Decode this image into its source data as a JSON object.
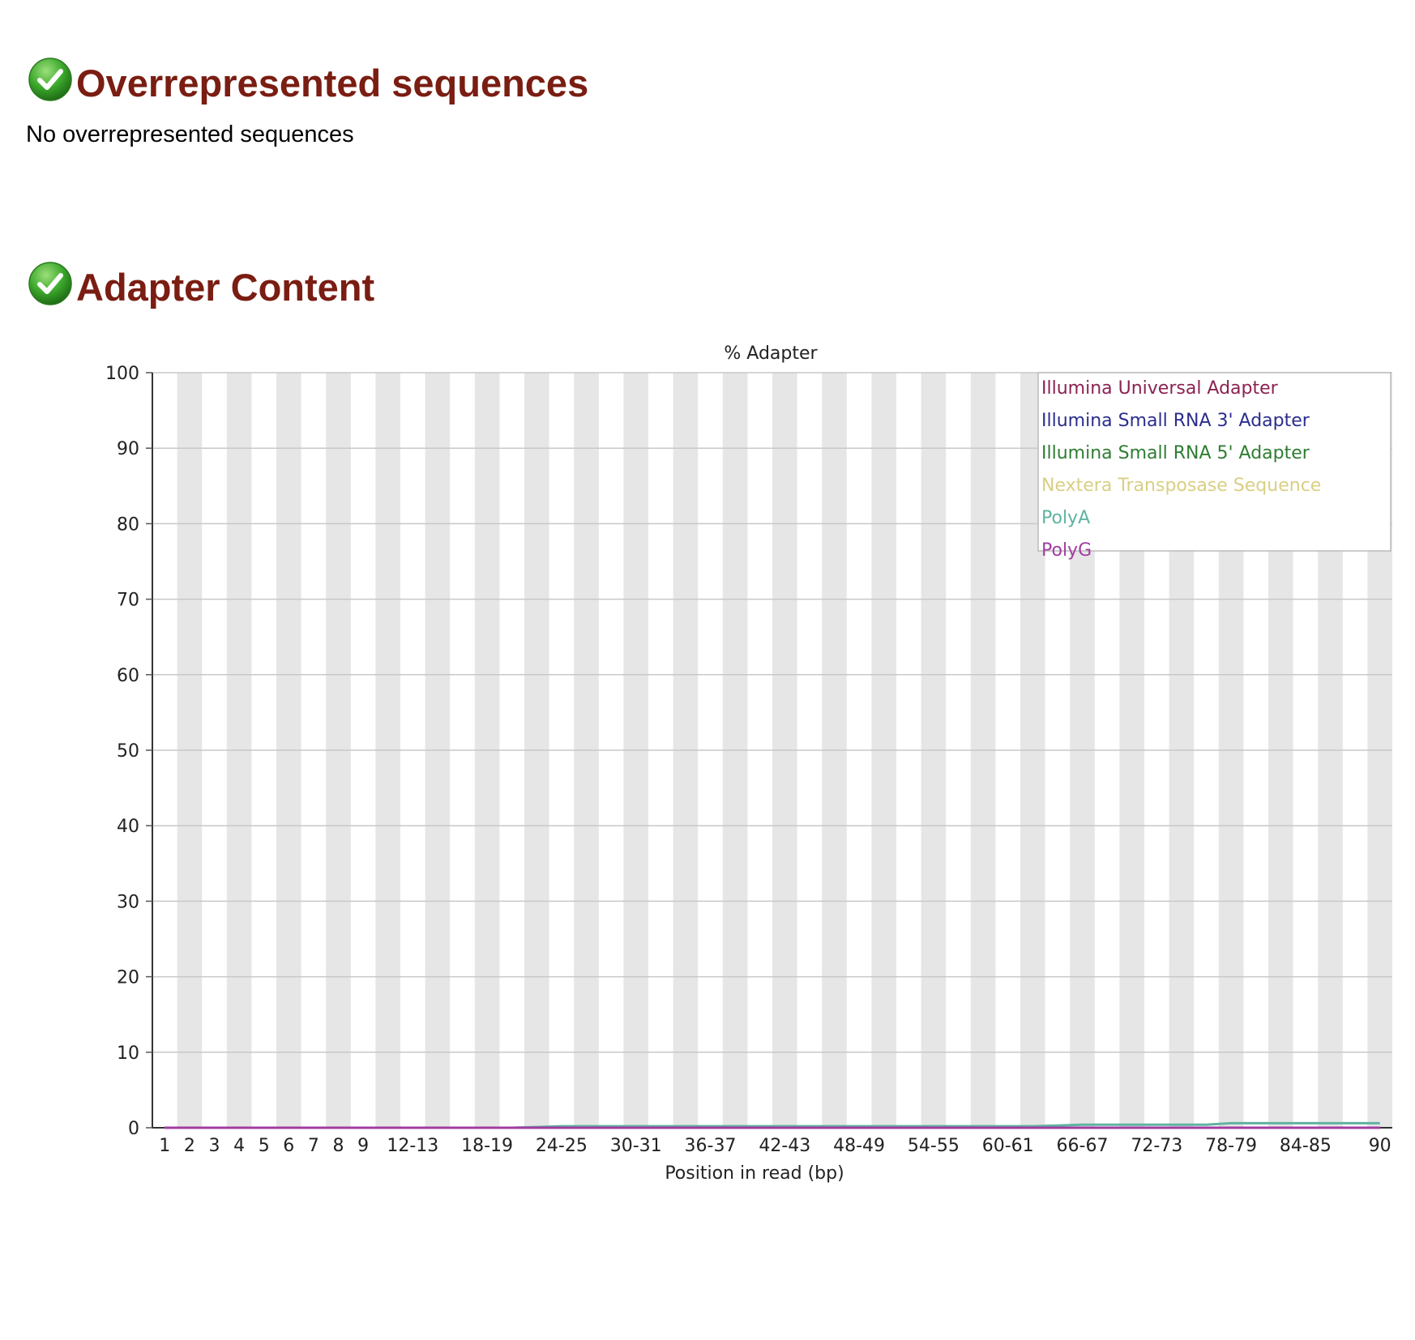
{
  "sections": [
    {
      "title": "Overrepresented sequences",
      "status": "pass",
      "icon": "check-circle-icon",
      "text": "No overrepresented sequences"
    },
    {
      "title": "Adapter Content",
      "status": "pass",
      "icon": "check-circle-icon"
    }
  ],
  "colors": {
    "heading": "#7a1d12",
    "pass_icon": "#3aa52a"
  },
  "chart_data": {
    "type": "line",
    "title": "% Adapter",
    "xlabel": "Position in read (bp)",
    "ylabel": "",
    "ylim": [
      0,
      100
    ],
    "yticks": [
      0,
      10,
      20,
      30,
      40,
      50,
      60,
      70,
      80,
      90,
      100
    ],
    "categories": [
      "1",
      "2",
      "3",
      "4",
      "5",
      "6",
      "7",
      "8",
      "9",
      "10-11",
      "12-13",
      "14-15",
      "16-17",
      "18-19",
      "20-21",
      "22-23",
      "24-25",
      "26-27",
      "28-29",
      "30-31",
      "32-33",
      "34-35",
      "36-37",
      "38-39",
      "40-41",
      "42-43",
      "44-45",
      "46-47",
      "48-49",
      "50-51",
      "52-53",
      "54-55",
      "56-57",
      "58-59",
      "60-61",
      "62-63",
      "64-65",
      "66-67",
      "68-69",
      "70-71",
      "72-73",
      "74-75",
      "76-77",
      "78-79",
      "80-81",
      "82-83",
      "84-85",
      "86-87",
      "88-89",
      "90"
    ],
    "tick_labels": [
      "1",
      "2",
      "3",
      "4",
      "5",
      "6",
      "7",
      "8",
      "9",
      "12-13",
      "18-19",
      "24-25",
      "30-31",
      "36-37",
      "42-43",
      "48-49",
      "54-55",
      "60-61",
      "66-67",
      "72-73",
      "78-79",
      "84-85",
      "90"
    ],
    "grid": true,
    "legend_position": "top-right",
    "series": [
      {
        "name": "Illumina Universal Adapter",
        "color": "#8b2252",
        "values": [
          0,
          0,
          0,
          0,
          0,
          0,
          0,
          0,
          0,
          0,
          0,
          0,
          0,
          0,
          0,
          0,
          0,
          0,
          0,
          0,
          0,
          0,
          0,
          0,
          0,
          0,
          0,
          0,
          0,
          0,
          0,
          0,
          0,
          0,
          0,
          0,
          0,
          0,
          0,
          0,
          0,
          0,
          0,
          0,
          0,
          0,
          0,
          0,
          0,
          0
        ]
      },
      {
        "name": "Illumina Small RNA 3' Adapter",
        "color": "#2b2d8c",
        "values": [
          0,
          0,
          0,
          0,
          0,
          0,
          0,
          0,
          0,
          0,
          0,
          0,
          0,
          0,
          0,
          0,
          0,
          0,
          0,
          0,
          0,
          0,
          0,
          0,
          0,
          0,
          0,
          0,
          0,
          0,
          0,
          0,
          0,
          0,
          0,
          0,
          0,
          0,
          0,
          0,
          0,
          0,
          0,
          0,
          0,
          0,
          0,
          0,
          0,
          0
        ]
      },
      {
        "name": "Illumina Small RNA 5' Adapter",
        "color": "#2e7d32",
        "values": [
          0,
          0,
          0,
          0,
          0,
          0,
          0,
          0,
          0,
          0,
          0,
          0,
          0,
          0,
          0,
          0,
          0,
          0,
          0,
          0,
          0,
          0,
          0,
          0,
          0,
          0,
          0,
          0,
          0,
          0,
          0,
          0,
          0,
          0,
          0,
          0,
          0,
          0,
          0,
          0,
          0,
          0,
          0,
          0,
          0,
          0,
          0,
          0,
          0,
          0
        ]
      },
      {
        "name": "Nextera Transposase Sequence",
        "color": "#d9cf84",
        "values": [
          0,
          0,
          0,
          0,
          0,
          0,
          0,
          0,
          0,
          0,
          0,
          0,
          0,
          0,
          0,
          0,
          0,
          0,
          0,
          0,
          0,
          0,
          0,
          0,
          0,
          0,
          0,
          0,
          0,
          0,
          0,
          0,
          0,
          0,
          0,
          0,
          0,
          0,
          0,
          0,
          0,
          0,
          0,
          0,
          0,
          0,
          0,
          0,
          0,
          0
        ]
      },
      {
        "name": "PolyA",
        "color": "#5fb3a1",
        "values": [
          0,
          0,
          0,
          0,
          0,
          0,
          0,
          0,
          0,
          0,
          0,
          0,
          0,
          0,
          0,
          0.1,
          0.2,
          0.2,
          0.2,
          0.2,
          0.2,
          0.2,
          0.2,
          0.2,
          0.2,
          0.2,
          0.2,
          0.2,
          0.2,
          0.2,
          0.2,
          0.2,
          0.2,
          0.2,
          0.2,
          0.2,
          0.3,
          0.4,
          0.4,
          0.4,
          0.4,
          0.4,
          0.4,
          0.6,
          0.6,
          0.6,
          0.6,
          0.6,
          0.6,
          0.6
        ]
      },
      {
        "name": "PolyG",
        "color": "#a33ca3",
        "values": [
          0,
          0,
          0,
          0,
          0,
          0,
          0,
          0,
          0,
          0,
          0,
          0,
          0,
          0,
          0,
          0,
          0,
          0,
          0,
          0,
          0,
          0,
          0,
          0,
          0,
          0,
          0,
          0,
          0,
          0,
          0,
          0,
          0,
          0,
          0,
          0,
          0,
          0,
          0,
          0,
          0,
          0,
          0,
          0,
          0,
          0,
          0,
          0,
          0,
          0
        ]
      }
    ]
  }
}
